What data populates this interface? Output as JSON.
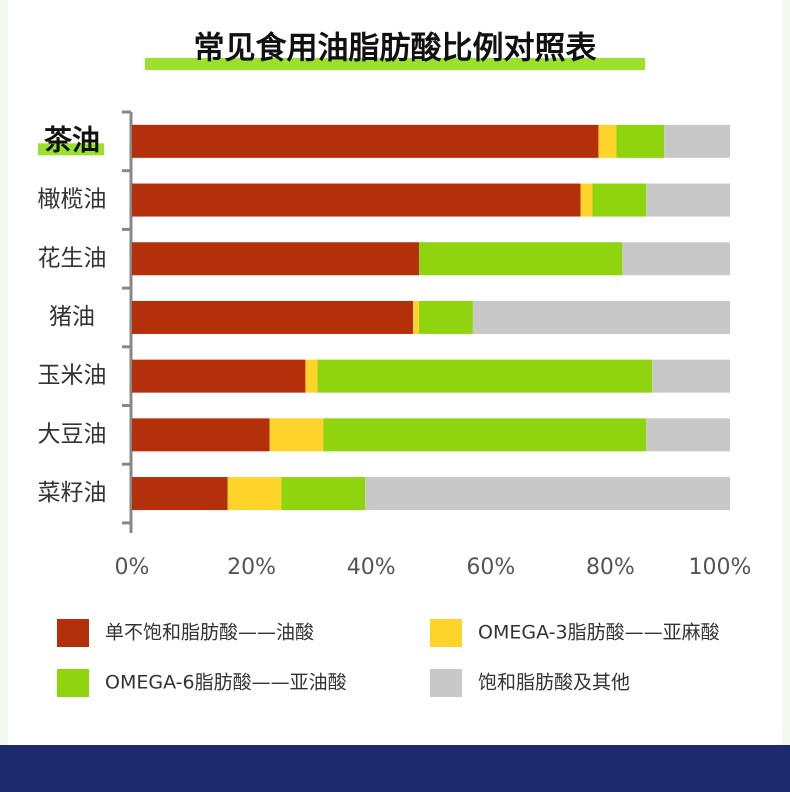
{
  "chart_data": {
    "type": "stacked-bar-horizontal",
    "title": "常见食用油脂肪酸比例对照表",
    "categories": [
      "茶油",
      "橄榄油",
      "花生油",
      "猪油",
      "玉米油",
      "大豆油",
      "菜籽油"
    ],
    "highlight_index": 0,
    "series": [
      {
        "name": "单不饱和脂肪酸——油酸",
        "color": "#b3300b",
        "values": [
          78,
          75,
          48,
          47,
          29,
          23,
          16
        ]
      },
      {
        "name": "OMEGA-3脂肪酸——亚麻酸",
        "color": "#ffd42a",
        "values": [
          3,
          2,
          0,
          1,
          2,
          9,
          9
        ]
      },
      {
        "name": "OMEGA-6脂肪酸——亚油酸",
        "color": "#8fd40f",
        "values": [
          8,
          9,
          34,
          9,
          56,
          54,
          14
        ]
      },
      {
        "name": "饱和脂肪酸及其他",
        "color": "#c8c8c8",
        "values": [
          11,
          14,
          18,
          43,
          13,
          14,
          61
        ]
      }
    ],
    "xlim": [
      0,
      100
    ],
    "xticks": [
      {
        "value": 0,
        "label": "0%"
      },
      {
        "value": 20,
        "label": "20%"
      },
      {
        "value": 40,
        "label": "40%"
      },
      {
        "value": 60,
        "label": "60%"
      },
      {
        "value": 80,
        "label": "80%"
      },
      {
        "value": 100,
        "label": "100%"
      }
    ]
  }
}
